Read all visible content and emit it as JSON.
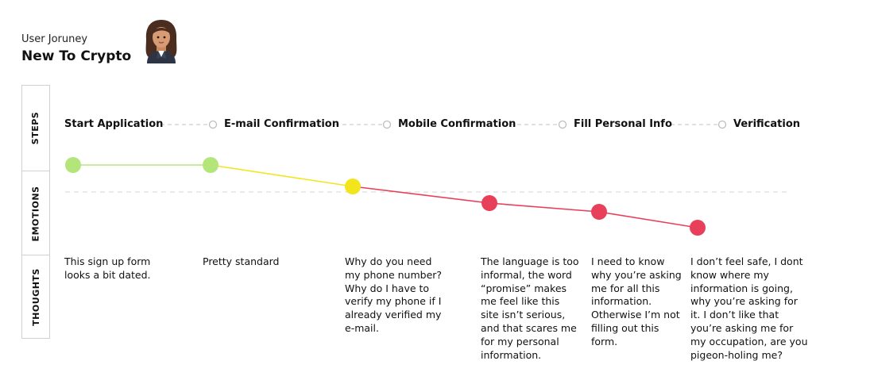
{
  "header": {
    "subtitle": "User Joruney",
    "title": "New To Crypto",
    "persona_icon": "woman-emoji-icon"
  },
  "row_labels": {
    "steps": "STEPS",
    "emotions": "EMOTIONS",
    "thoughts": "THOUGHTS"
  },
  "steps": [
    "Start Application",
    "E-mail Confirmation",
    "Mobile Confirmation",
    "Fill Personal Info",
    "Verification"
  ],
  "emotion_points": [
    {
      "sentiment": "positive",
      "color": "#b3e57a"
    },
    {
      "sentiment": "positive",
      "color": "#b3e57a"
    },
    {
      "sentiment": "neutral",
      "color": "#f2e51c"
    },
    {
      "sentiment": "negative",
      "color": "#e8405b"
    },
    {
      "sentiment": "negative",
      "color": "#e8405b"
    },
    {
      "sentiment": "negative",
      "color": "#e8405b"
    }
  ],
  "thoughts": [
    "This sign up form looks a bit dated.",
    "Pretty standard",
    "Why do you need my phone number? Why do I have to verify my phone if I already verified my e-mail.",
    "The language is too informal, the word “promise” makes me feel like this site isn’t serious, and that scares me for my personal information.",
    "I need to know why you’re asking me for all this information. Otherwise I’m not filling out this form.",
    "I don’t feel safe, I dont know where my information is going, why you’re asking for it. I don’t like that you’re asking me for my occupation, are you pigeon-holing me?"
  ],
  "colors": {
    "positive": "#b3e57a",
    "neutral": "#f2e51c",
    "negative": "#e8405b"
  }
}
